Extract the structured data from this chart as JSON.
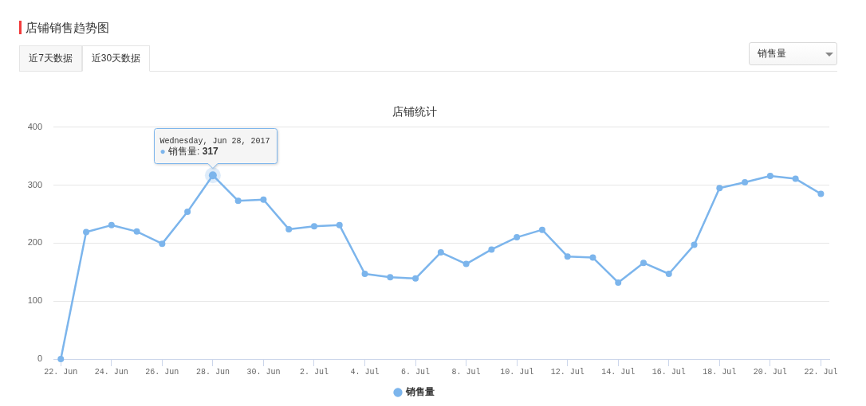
{
  "chart_data": {
    "type": "line",
    "title": "店铺销售趋势图",
    "subtitle": "店铺统计",
    "x": [
      "2017-06-22",
      "2017-06-23",
      "2017-06-24",
      "2017-06-25",
      "2017-06-26",
      "2017-06-27",
      "2017-06-28",
      "2017-06-29",
      "2017-06-30",
      "2017-07-01",
      "2017-07-02",
      "2017-07-03",
      "2017-07-04",
      "2017-07-05",
      "2017-07-06",
      "2017-07-07",
      "2017-07-08",
      "2017-07-09",
      "2017-07-10",
      "2017-07-11",
      "2017-07-12",
      "2017-07-13",
      "2017-07-14",
      "2017-07-15",
      "2017-07-16",
      "2017-07-17",
      "2017-07-18",
      "2017-07-19",
      "2017-07-20",
      "2017-07-21",
      "2017-07-22"
    ],
    "series": [
      {
        "name": "销售量",
        "color": "#7cb5ec",
        "values": [
          0,
          219,
          231,
          220,
          199,
          254,
          317,
          273,
          275,
          224,
          229,
          231,
          147,
          141,
          139,
          184,
          164,
          189,
          210,
          223,
          177,
          175,
          132,
          166,
          147,
          197,
          295,
          305,
          316,
          311,
          285
        ]
      }
    ],
    "xlim": [
      "2017-06-21T17:00",
      "2017-07-22T08:00"
    ],
    "xticks": [
      {
        "value": "2017-06-22",
        "label": "22. Jun"
      },
      {
        "value": "2017-06-24",
        "label": "24. Jun"
      },
      {
        "value": "2017-06-26",
        "label": "26. Jun"
      },
      {
        "value": "2017-06-28",
        "label": "28. Jun"
      },
      {
        "value": "2017-06-30",
        "label": "30. Jun"
      },
      {
        "value": "2017-07-02",
        "label": "2. Jul"
      },
      {
        "value": "2017-07-04",
        "label": "4. Jul"
      },
      {
        "value": "2017-07-06",
        "label": "6. Jul"
      },
      {
        "value": "2017-07-08",
        "label": "8. Jul"
      },
      {
        "value": "2017-07-10",
        "label": "10. Jul"
      },
      {
        "value": "2017-07-12",
        "label": "12. Jul"
      },
      {
        "value": "2017-07-14",
        "label": "14. Jul"
      },
      {
        "value": "2017-07-16",
        "label": "16. Jul"
      },
      {
        "value": "2017-07-18",
        "label": "18. Jul"
      },
      {
        "value": "2017-07-20",
        "label": "20. Jul"
      },
      {
        "value": "2017-07-22",
        "label": "22. Jul"
      }
    ],
    "ylim": [
      0,
      400
    ],
    "yticks": [
      0,
      100,
      200,
      300,
      400
    ],
    "grid": "y",
    "legend": "bottom",
    "marker": "circle",
    "annotations": [
      "近7天数据",
      "近30天数据",
      "销售量",
      "Wednesday, Jun 28, 2017",
      {
        "text": "● 销售量: 317",
        "x": "2017-06-28",
        "y": 317
      }
    ]
  }
}
